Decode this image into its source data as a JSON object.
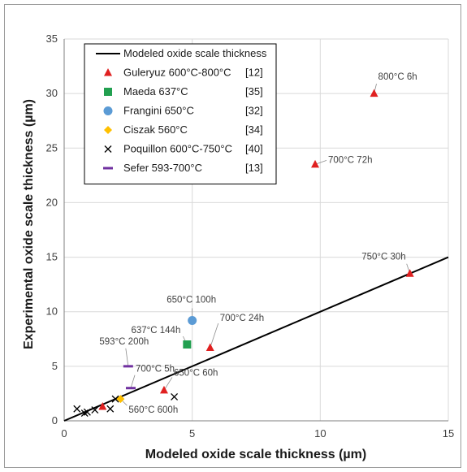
{
  "chart_data": {
    "type": "scatter",
    "xlabel": "Modeled oxide scale thickness (µm)",
    "ylabel": "Experimental oxide scale thickness (µm)",
    "xlim": [
      0,
      15
    ],
    "ylim": [
      0,
      35
    ],
    "x_ticks": [
      0,
      5,
      10,
      15
    ],
    "y_ticks": [
      0,
      5,
      10,
      15,
      20,
      25,
      30,
      35
    ],
    "grid": true,
    "legend_position": "top-left",
    "model_line": {
      "name": "Modeled oxide scale thickness",
      "x": [
        0,
        15
      ],
      "y": [
        0,
        15
      ],
      "color": "#000000"
    },
    "series": [
      {
        "name": "Guleryuz 600°C-800°C",
        "ref": "[12]",
        "marker": "triangle",
        "color": "#e02020",
        "points": [
          [
            1.5,
            1.3
          ],
          [
            3.9,
            2.8
          ],
          [
            5.7,
            6.7
          ],
          [
            9.8,
            23.5
          ],
          [
            12.1,
            30.0
          ],
          [
            13.5,
            13.5
          ]
        ]
      },
      {
        "name": "Maeda 637°C",
        "ref": "[35]",
        "marker": "square",
        "color": "#22a050",
        "points": [
          [
            4.8,
            7.0
          ]
        ]
      },
      {
        "name": "Frangini 650°C",
        "ref": "[32]",
        "marker": "circle",
        "color": "#5b9bd5",
        "points": [
          [
            5.0,
            9.2
          ]
        ]
      },
      {
        "name": "Ciszak 560°C",
        "ref": "[34]",
        "marker": "diamond",
        "color": "#ffc000",
        "points": [
          [
            2.2,
            2.0
          ]
        ]
      },
      {
        "name": "Poquillon 600°C-750°C",
        "ref": "[40]",
        "marker": "x",
        "color": "#000000",
        "points": [
          [
            0.5,
            1.1
          ],
          [
            0.8,
            0.7
          ],
          [
            0.9,
            0.8
          ],
          [
            1.2,
            1.0
          ],
          [
            1.8,
            1.1
          ],
          [
            2.0,
            2.0
          ],
          [
            4.3,
            2.2
          ]
        ]
      },
      {
        "name": "Sefer 593-700°C",
        "ref": "[13]",
        "marker": "dash",
        "color": "#7030a0",
        "points": [
          [
            2.5,
            5.0
          ],
          [
            2.6,
            3.0
          ]
        ]
      }
    ],
    "annotations": [
      {
        "text": "800°C 6h",
        "x": 12.1,
        "y": 30.0
      },
      {
        "text": "700°C 72h",
        "x": 9.8,
        "y": 23.5
      },
      {
        "text": "750°C 30h",
        "x": 13.5,
        "y": 13.5
      },
      {
        "text": "650°C 100h",
        "x": 5.0,
        "y": 9.2
      },
      {
        "text": "637°C 144h",
        "x": 4.8,
        "y": 7.0
      },
      {
        "text": "700°C 24h",
        "x": 5.7,
        "y": 6.7
      },
      {
        "text": "593°C 200h",
        "x": 2.5,
        "y": 5.0
      },
      {
        "text": "700°C 5h",
        "x": 2.6,
        "y": 3.0
      },
      {
        "text": "650°C 60h",
        "x": 3.9,
        "y": 2.8
      },
      {
        "text": "560°C 600h",
        "x": 2.2,
        "y": 2.0
      }
    ]
  }
}
